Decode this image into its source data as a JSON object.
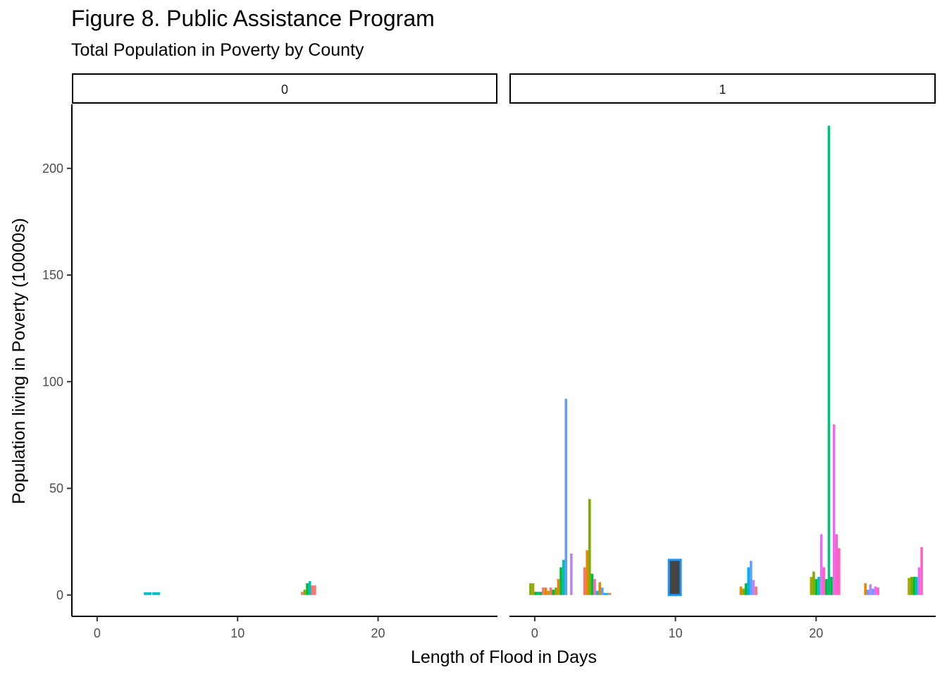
{
  "title": "Figure 8. Public Assistance Program",
  "subtitle": "Total Population in Poverty by County",
  "chart_data": {
    "type": "bar",
    "title": "Figure 8. Public Assistance Program",
    "subtitle": "Total Population in Poverty by County",
    "xlabel": "Length of Flood in Days",
    "ylabel": "Population living in Poverty (10000s)",
    "xlim": [
      -1.8,
      28.5
    ],
    "ylim": [
      -10,
      230
    ],
    "xticks": [
      0,
      10,
      20
    ],
    "yticks": [
      0,
      50,
      100,
      150,
      200
    ],
    "xtick_labels": [
      "0",
      "10",
      "20"
    ],
    "ytick_labels": [
      "0",
      "50",
      "100",
      "150",
      "200"
    ],
    "bar_width_days": 0.18,
    "legend": "none",
    "facets": [
      {
        "label": "0",
        "bars": [
          {
            "x": 3.6,
            "value": 1.3,
            "color": "#00BFC4",
            "w": 0.55
          },
          {
            "x": 4.2,
            "value": 1.3,
            "color": "#00BFC4",
            "w": 0.55
          },
          {
            "x": 14.6,
            "value": 1.5,
            "color": "#F8766D"
          },
          {
            "x": 14.78,
            "value": 2.5,
            "color": "#7CAE00"
          },
          {
            "x": 14.96,
            "value": 5.5,
            "color": "#00BA38"
          },
          {
            "x": 15.14,
            "value": 6.5,
            "color": "#00BFC4"
          },
          {
            "x": 15.32,
            "value": 4.5,
            "color": "#F8766D"
          },
          {
            "x": 15.5,
            "value": 4.5,
            "color": "#F8766D"
          }
        ]
      },
      {
        "label": "1",
        "bars": [
          {
            "x": -0.3,
            "value": 5.5,
            "color": "#7CAE00"
          },
          {
            "x": -0.12,
            "value": 5.5,
            "color": "#A3A500"
          },
          {
            "x": 0.06,
            "value": 1.5,
            "color": "#00BA38"
          },
          {
            "x": 0.24,
            "value": 1.5,
            "color": "#00BF7D"
          },
          {
            "x": 0.42,
            "value": 1.5,
            "color": "#00BA38"
          },
          {
            "x": 0.6,
            "value": 3.5,
            "color": "#F8766D"
          },
          {
            "x": 0.78,
            "value": 3.5,
            "color": "#E58700"
          },
          {
            "x": 0.96,
            "value": 2.0,
            "color": "#C99800"
          },
          {
            "x": 1.14,
            "value": 3.5,
            "color": "#F8766D"
          },
          {
            "x": 1.32,
            "value": 2.5,
            "color": "#00BA38"
          },
          {
            "x": 1.5,
            "value": 3.5,
            "color": "#7CAE00"
          },
          {
            "x": 1.68,
            "value": 7.5,
            "color": "#E58700"
          },
          {
            "x": 1.86,
            "value": 13,
            "color": "#00BA38"
          },
          {
            "x": 2.04,
            "value": 16.5,
            "color": "#00C0AF"
          },
          {
            "x": 2.22,
            "value": 92,
            "color": "#619CFF"
          },
          {
            "x": 2.6,
            "value": 19.5,
            "color": "#B983FF"
          },
          {
            "x": 3.54,
            "value": 13,
            "color": "#F8766D"
          },
          {
            "x": 3.72,
            "value": 21,
            "color": "#E58700"
          },
          {
            "x": 3.9,
            "value": 45,
            "color": "#7CAE00"
          },
          {
            "x": 4.08,
            "value": 10,
            "color": "#00BA38"
          },
          {
            "x": 4.26,
            "value": 7.5,
            "color": "#FF61C3"
          },
          {
            "x": 4.44,
            "value": 2.0,
            "color": "#00BFC4"
          },
          {
            "x": 4.62,
            "value": 6.0,
            "color": "#E58700"
          },
          {
            "x": 4.8,
            "value": 3.5,
            "color": "#619CFF"
          },
          {
            "x": 4.98,
            "value": 1.0,
            "color": "#00B0F6"
          },
          {
            "x": 5.16,
            "value": 1.0,
            "color": "#00BFC4"
          },
          {
            "x": 5.34,
            "value": 1.0,
            "color": "#F8766D"
          },
          {
            "x": 9.95,
            "value": 16.5,
            "color": "#444444",
            "w": 0.85,
            "stroke": "#2196F3"
          },
          {
            "x": 14.65,
            "value": 4.0,
            "color": "#E58700"
          },
          {
            "x": 14.83,
            "value": 3.0,
            "color": "#7CAE00"
          },
          {
            "x": 15.01,
            "value": 5.5,
            "color": "#00BA38"
          },
          {
            "x": 15.19,
            "value": 13,
            "color": "#00B0F6"
          },
          {
            "x": 15.37,
            "value": 16,
            "color": "#619CFF"
          },
          {
            "x": 15.55,
            "value": 7.0,
            "color": "#B983FF"
          },
          {
            "x": 15.73,
            "value": 4.0,
            "color": "#F8766D"
          },
          {
            "x": 19.65,
            "value": 8.5,
            "color": "#A3A500"
          },
          {
            "x": 19.83,
            "value": 11,
            "color": "#7CAE00"
          },
          {
            "x": 20.01,
            "value": 7.5,
            "color": "#00BA38"
          },
          {
            "x": 20.19,
            "value": 8.5,
            "color": "#00BFC4"
          },
          {
            "x": 20.37,
            "value": 28.5,
            "color": "#E76BF3"
          },
          {
            "x": 20.55,
            "value": 13,
            "color": "#FF61C3"
          },
          {
            "x": 20.73,
            "value": 7.5,
            "color": "#00BA38"
          },
          {
            "x": 20.91,
            "value": 220,
            "color": "#00BF7D"
          },
          {
            "x": 21.09,
            "value": 8.5,
            "color": "#00BA38"
          },
          {
            "x": 21.27,
            "value": 80,
            "color": "#E76BF3"
          },
          {
            "x": 21.45,
            "value": 28.5,
            "color": "#FF61C3"
          },
          {
            "x": 21.63,
            "value": 22,
            "color": "#FF61C3"
          },
          {
            "x": 23.5,
            "value": 5.5,
            "color": "#E58700"
          },
          {
            "x": 23.68,
            "value": 2.5,
            "color": "#619CFF"
          },
          {
            "x": 23.86,
            "value": 5.0,
            "color": "#B983FF"
          },
          {
            "x": 24.04,
            "value": 3.0,
            "color": "#619CFF"
          },
          {
            "x": 24.22,
            "value": 4.0,
            "color": "#E76BF3"
          },
          {
            "x": 24.4,
            "value": 3.5,
            "color": "#FF61C3"
          },
          {
            "x": 26.6,
            "value": 8.0,
            "color": "#A3A500"
          },
          {
            "x": 26.78,
            "value": 8.5,
            "color": "#7CAE00"
          },
          {
            "x": 26.96,
            "value": 8.5,
            "color": "#00BA38"
          },
          {
            "x": 27.14,
            "value": 8.5,
            "color": "#00BFC4"
          },
          {
            "x": 27.32,
            "value": 13,
            "color": "#E76BF3"
          },
          {
            "x": 27.5,
            "value": 22.5,
            "color": "#FF61C3"
          }
        ]
      }
    ]
  }
}
